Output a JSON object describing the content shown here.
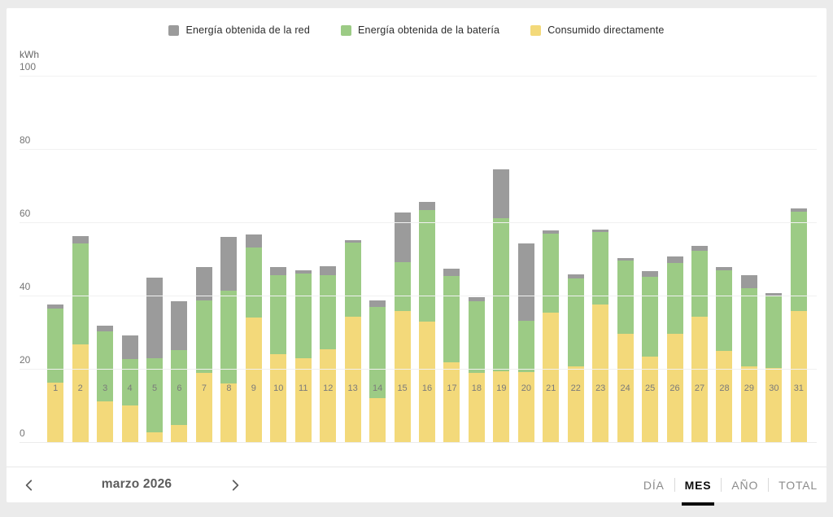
{
  "legend": {
    "items": [
      {
        "label": "Energía obtenida de la red",
        "color": "#9b9b9b"
      },
      {
        "label": "Energía obtenida de la batería",
        "color": "#9ccb85"
      },
      {
        "label": "Consumido directamente",
        "color": "#f3d97a"
      }
    ]
  },
  "chart_data": {
    "type": "bar",
    "stacked": true,
    "unit_label": "kWh",
    "ylim": [
      0,
      100
    ],
    "yticks": [
      0,
      20,
      40,
      60,
      80,
      100
    ],
    "grid": true,
    "legend_position": "top",
    "categories": [
      "1",
      "2",
      "3",
      "4",
      "5",
      "6",
      "7",
      "8",
      "9",
      "10",
      "11",
      "12",
      "13",
      "14",
      "15",
      "16",
      "17",
      "18",
      "19",
      "20",
      "21",
      "22",
      "23",
      "24",
      "25",
      "26",
      "27",
      "28",
      "29",
      "30",
      "31"
    ],
    "series": [
      {
        "name": "Consumido directamente",
        "color": "#f3d97a",
        "values": [
          16.3,
          26.6,
          11.2,
          9.9,
          2.7,
          4.6,
          19.0,
          15.9,
          34.1,
          24.0,
          22.9,
          25.3,
          34.3,
          11.9,
          35.8,
          33.0,
          21.8,
          19.0,
          19.4,
          19.2,
          35.3,
          20.6,
          37.5,
          29.5,
          23.3,
          29.5,
          34.2,
          24.9,
          20.7,
          20.3,
          35.8
        ]
      },
      {
        "name": "Energía obtenida de la batería",
        "color": "#9ccb85",
        "values": [
          20.1,
          27.7,
          19.0,
          12.8,
          20.2,
          20.5,
          19.7,
          25.5,
          19.1,
          21.5,
          23.2,
          20.3,
          20.2,
          25.1,
          13.3,
          30.3,
          23.5,
          19.4,
          41.7,
          13.9,
          21.7,
          24.0,
          19.9,
          20.0,
          21.8,
          19.4,
          18.1,
          21.9,
          21.2,
          19.4,
          27.0
        ]
      },
      {
        "name": "Energía obtenida de la red",
        "color": "#9b9b9b",
        "values": [
          1.2,
          2.0,
          1.5,
          6.4,
          21.9,
          13.4,
          9.0,
          14.5,
          3.5,
          2.2,
          0.9,
          2.4,
          0.7,
          1.7,
          13.6,
          2.2,
          2.0,
          1.2,
          13.4,
          21.1,
          0.7,
          1.1,
          0.7,
          0.7,
          1.6,
          1.7,
          1.3,
          1.0,
          3.7,
          1.0,
          1.0
        ]
      }
    ]
  },
  "nav": {
    "period_label": "marzo 2026",
    "prev_icon": "chevron-left",
    "next_icon": "chevron-right"
  },
  "tabs": {
    "items": [
      {
        "label": "DÍA",
        "active": false
      },
      {
        "label": "MES",
        "active": true
      },
      {
        "label": "AÑO",
        "active": false
      },
      {
        "label": "TOTAL",
        "active": false
      }
    ]
  }
}
